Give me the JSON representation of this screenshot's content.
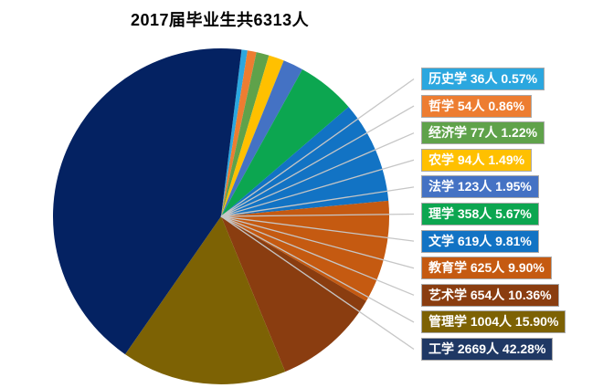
{
  "chart_data": {
    "type": "pie",
    "title": "2017届毕业生共6313人",
    "total": 6313,
    "unit_suffix": "人",
    "legend_position": "right",
    "clockwise_from_top": true,
    "start_angle_deg": 7,
    "leader_line_color": "#C6C6C6",
    "label_border_color": "#A8A8A8",
    "label_text_color": "#FFFFFF",
    "slices": [
      {
        "label": "历史学",
        "count": 36,
        "percent": 0.57,
        "display": "历史学 36人 0.57%",
        "color": "#2BA7DF"
      },
      {
        "label": "哲学",
        "count": 54,
        "percent": 0.86,
        "display": "哲学 54人 0.86%",
        "color": "#ED7D31"
      },
      {
        "label": "经济学",
        "count": 77,
        "percent": 1.22,
        "display": "经济学 77人 1.22%",
        "color": "#5FA24A"
      },
      {
        "label": "农学",
        "count": 94,
        "percent": 1.49,
        "display": "农学 94人 1.49%",
        "color": "#FFC000"
      },
      {
        "label": "法学",
        "count": 123,
        "percent": 1.95,
        "display": "法学 123人 1.95%",
        "color": "#4472C4"
      },
      {
        "label": "理学",
        "count": 358,
        "percent": 5.67,
        "display": "理学 358人 5.67%",
        "color": "#0CA650"
      },
      {
        "label": "文学",
        "count": 619,
        "percent": 9.81,
        "display": "文学 619人 9.81%",
        "color": "#1273C4"
      },
      {
        "label": "教育学",
        "count": 625,
        "percent": 9.9,
        "display": "教育学 625人 9.90%",
        "color": "#C55A11"
      },
      {
        "label": "艺术学",
        "count": 654,
        "percent": 10.36,
        "display": "艺术学 654人 10.36%",
        "color": "#8A3D10"
      },
      {
        "label": "管理学",
        "count": 1004,
        "percent": 15.9,
        "display": "管理学 1004人 15.90%",
        "color": "#7D6204"
      },
      {
        "label": "工学",
        "count": 2669,
        "percent": 42.28,
        "display": "工学 2669人 42.28%",
        "color": "#042262",
        "label_color": "#1F3864"
      }
    ]
  }
}
